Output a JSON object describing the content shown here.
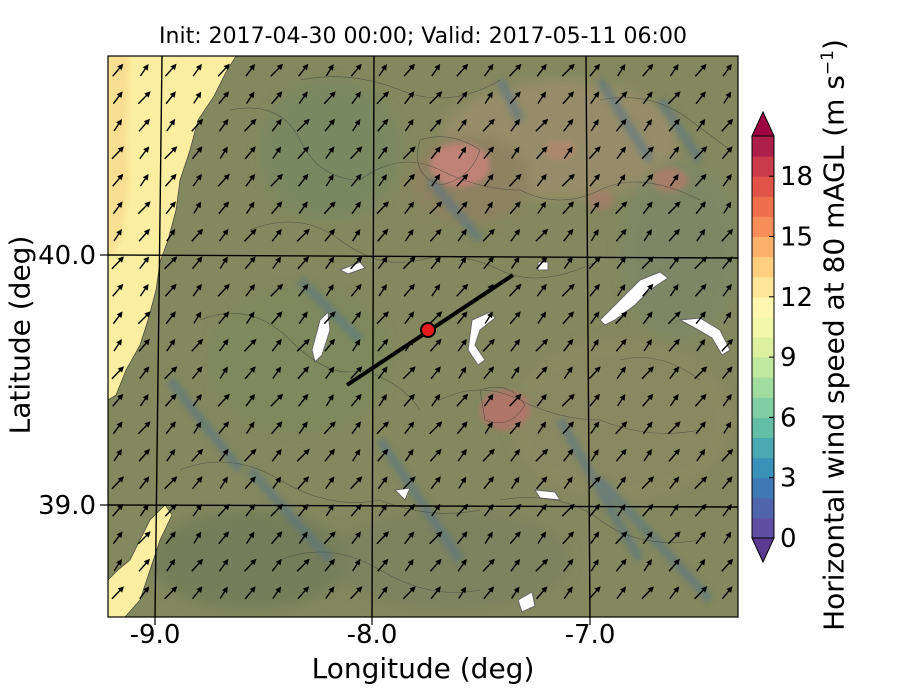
{
  "title": "Init: 2017-04-30 00:00; Valid: 2017-05-11 06:00",
  "x_axis": {
    "label": "Longitude (deg)",
    "ticks": [
      "-9.0",
      "-8.0",
      "-7.0"
    ]
  },
  "y_axis": {
    "label": "Latitude (deg)",
    "ticks": [
      "40.0",
      "39.0"
    ]
  },
  "colorbar": {
    "label_main": "Horizontal wind speed at 80 mAGL (m s",
    "label_sup": "−1",
    "label_close": ")",
    "ticks": [
      "0",
      "3",
      "6",
      "9",
      "12",
      "15",
      "18"
    ],
    "range": [
      0,
      20
    ],
    "extend": "both",
    "colormap": [
      "#5e4fa2",
      "#4f64ab",
      "#3f79b5",
      "#3a91b8",
      "#49a8b1",
      "#63bea6",
      "#81cda4",
      "#a2db9f",
      "#c1e8a0",
      "#dcf09f",
      "#f1f8a9",
      "#fff6af",
      "#fee597",
      "#fdcf7f",
      "#fbb16b",
      "#f78d59",
      "#ee6f4b",
      "#df5348",
      "#c93a4a",
      "#ad1e4a",
      "#9e0142"
    ]
  },
  "map_features": {
    "marker": {
      "lon": -7.74,
      "lat": 39.69,
      "color": "#e41a1c"
    },
    "cross_section_line": {
      "lon": [
        -8.1,
        -7.4
      ],
      "lat": [
        39.48,
        39.94
      ]
    },
    "wind_direction": "southwesterly",
    "gridlines": "on"
  }
}
